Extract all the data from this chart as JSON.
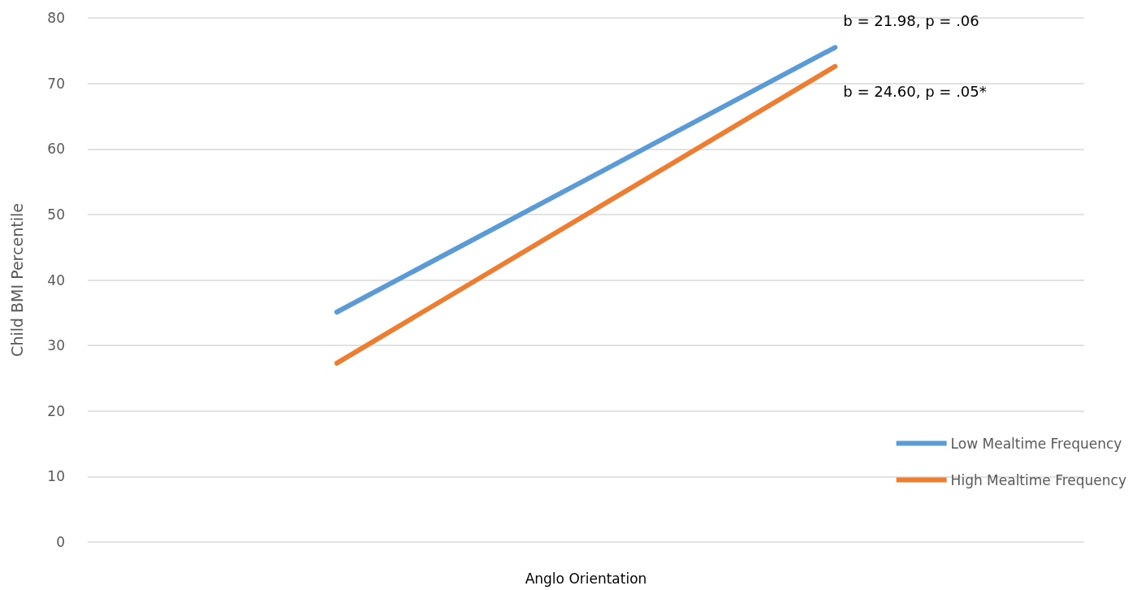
{
  "chart_data": {
    "type": "line",
    "ylabel": "Child BMI Percentile",
    "xlabel": "Anglo Orientation",
    "categories": [
      null,
      null
    ],
    "series": [
      {
        "name": "Low Mealtime Frequency",
        "color": "#5b9bd5",
        "values": [
          35.1,
          75.5
        ]
      },
      {
        "name": "High Mealtime Frequency",
        "color": "#ed7d31",
        "values": [
          27.3,
          72.6
        ]
      }
    ],
    "ylim": [
      0,
      80
    ],
    "yticks": [
      0,
      10,
      20,
      30,
      40,
      50,
      60,
      70,
      80
    ],
    "grid": "y",
    "legend": "bottom right",
    "marker": "none",
    "line_style": "solid",
    "annotations": [
      "b = 21.98, p = .06",
      "b = 24.60, p = .05*"
    ]
  }
}
